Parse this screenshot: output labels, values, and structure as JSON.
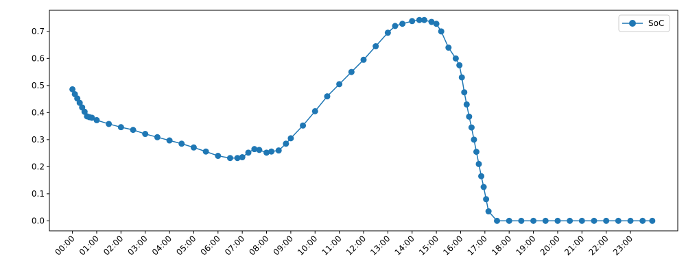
{
  "chart_data": {
    "type": "line",
    "title": "",
    "xlabel": "",
    "ylabel": "",
    "x_unit": "time of day (hours)",
    "xlim": [
      -0.95,
      24.95
    ],
    "ylim": [
      -0.037,
      0.778
    ],
    "x_ticks": [
      0,
      1,
      2,
      3,
      4,
      5,
      6,
      7,
      8,
      9,
      10,
      11,
      12,
      13,
      14,
      15,
      16,
      17,
      18,
      19,
      20,
      21,
      22,
      23
    ],
    "x_tick_labels": [
      "00:00",
      "01:00",
      "02:00",
      "03:00",
      "04:00",
      "05:00",
      "06:00",
      "07:00",
      "08:00",
      "09:00",
      "10:00",
      "11:00",
      "12:00",
      "13:00",
      "14:00",
      "15:00",
      "16:00",
      "17:00",
      "18:00",
      "19:00",
      "20:00",
      "21:00",
      "22:00",
      "23:00"
    ],
    "y_ticks": [
      0.0,
      0.1,
      0.2,
      0.3,
      0.4,
      0.5,
      0.6,
      0.7
    ],
    "y_tick_labels": [
      "0.0",
      "0.1",
      "0.2",
      "0.3",
      "0.4",
      "0.5",
      "0.6",
      "0.7"
    ],
    "grid": false,
    "legend_position": "top-right",
    "legend": [
      "SoC"
    ],
    "series": [
      {
        "name": "SoC",
        "color": "#1f77b4",
        "marker": "circle",
        "x": [
          0.0,
          0.1,
          0.2,
          0.3,
          0.4,
          0.5,
          0.6,
          0.7,
          0.8,
          1.0,
          1.5,
          2.0,
          2.5,
          3.0,
          3.5,
          4.0,
          4.5,
          5.0,
          5.5,
          6.0,
          6.5,
          6.8,
          7.0,
          7.25,
          7.5,
          7.7,
          8.0,
          8.2,
          8.5,
          8.8,
          9.0,
          9.5,
          10.0,
          10.5,
          11.0,
          11.5,
          12.0,
          12.5,
          13.0,
          13.3,
          13.6,
          14.0,
          14.3,
          14.5,
          14.8,
          15.0,
          15.2,
          15.5,
          15.8,
          15.95,
          16.05,
          16.15,
          16.25,
          16.35,
          16.45,
          16.55,
          16.65,
          16.75,
          16.85,
          16.95,
          17.05,
          17.15,
          17.5,
          18.0,
          18.5,
          19.0,
          19.5,
          20.0,
          20.5,
          21.0,
          21.5,
          22.0,
          22.5,
          23.0,
          23.5,
          23.9
        ],
        "y": [
          0.486,
          0.468,
          0.452,
          0.436,
          0.419,
          0.403,
          0.386,
          0.383,
          0.381,
          0.372,
          0.358,
          0.346,
          0.336,
          0.321,
          0.309,
          0.297,
          0.285,
          0.271,
          0.256,
          0.24,
          0.232,
          0.232,
          0.235,
          0.252,
          0.265,
          0.262,
          0.252,
          0.256,
          0.26,
          0.285,
          0.305,
          0.352,
          0.405,
          0.46,
          0.505,
          0.55,
          0.595,
          0.645,
          0.695,
          0.72,
          0.728,
          0.738,
          0.742,
          0.742,
          0.735,
          0.728,
          0.7,
          0.64,
          0.6,
          0.575,
          0.53,
          0.475,
          0.43,
          0.385,
          0.345,
          0.3,
          0.255,
          0.21,
          0.165,
          0.125,
          0.08,
          0.035,
          0.0,
          0.0,
          0.0,
          0.0,
          0.0,
          0.0,
          0.0,
          0.0,
          0.0,
          0.0,
          0.0,
          0.0,
          0.0,
          0.0
        ]
      }
    ]
  }
}
